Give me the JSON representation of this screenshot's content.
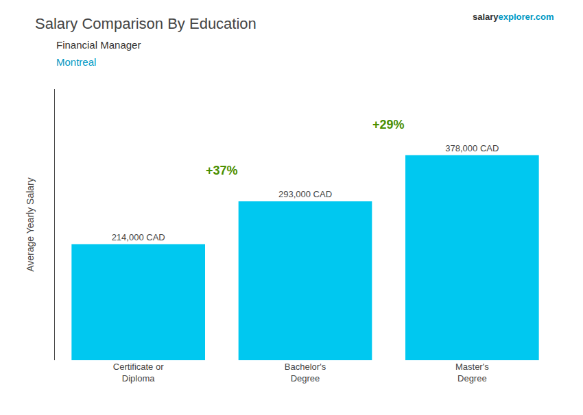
{
  "chart_data": {
    "type": "bar",
    "title": "Salary Comparison By Education",
    "subtitle": [
      "Financial Manager",
      "Montreal"
    ],
    "source": [
      "salary",
      "explorer",
      ".com"
    ],
    "ylabel": "Average Yearly Salary",
    "categories": [
      "Certificate or\nDiploma",
      "Bachelor's\nDegree",
      "Master's\nDegree"
    ],
    "values": [
      214000,
      293000,
      378000
    ],
    "value_labels": [
      "214,000 CAD",
      "293,000 CAD",
      "378,000 CAD"
    ],
    "data_labels": true,
    "annotations": [
      "+37%",
      "+29%"
    ],
    "color": "#00c8f0",
    "ylim": [
      0,
      500000
    ],
    "grid": false,
    "tick_labels": "x"
  }
}
